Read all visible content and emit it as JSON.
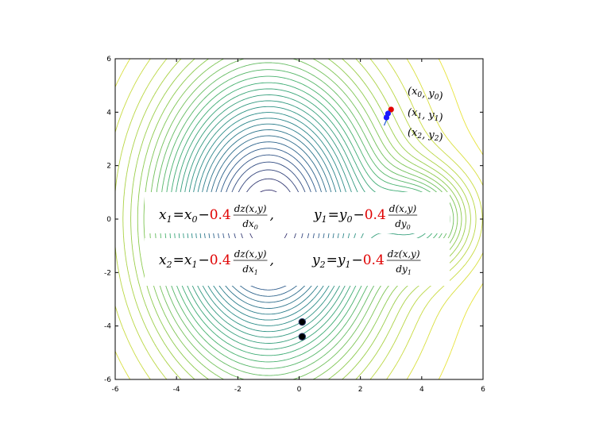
{
  "chart_data": {
    "type": "contour",
    "title": "",
    "xlabel": "",
    "ylabel": "",
    "xlim": [
      -6,
      6
    ],
    "ylim": [
      -6,
      6
    ],
    "xticks": [
      "-6",
      "-4",
      "-2",
      "0",
      "2",
      "4",
      "6"
    ],
    "yticks": [
      "-6",
      "-4",
      "-2",
      "0",
      "2",
      "4",
      "6"
    ],
    "grid": false,
    "colormap": [
      "#3b2f6b",
      "#2f5a8c",
      "#2a8a8a",
      "#3fae72",
      "#8fcb4c",
      "#e8e33a"
    ],
    "minima": [
      {
        "x": -1,
        "y": 0
      },
      {
        "x": 4,
        "y": 0
      }
    ],
    "points": [
      {
        "label": "(x0,y0)",
        "x": 3.0,
        "y": 4.1,
        "color": "#e00000"
      },
      {
        "label": "(x1,y1)",
        "x": 2.9,
        "y": 3.95,
        "color": "#1a1aff"
      },
      {
        "label": "(x2,y2)",
        "x": 2.85,
        "y": 3.8,
        "color": "#1a1aff"
      },
      {
        "label": "",
        "x": 0.1,
        "y": -3.85,
        "color": "#000000"
      },
      {
        "label": "",
        "x": 0.1,
        "y": -4.4,
        "color": "#000000"
      }
    ],
    "annotations": [
      {
        "base": "x",
        "sub": "0",
        "base2": "y",
        "sub2": "0"
      },
      {
        "base": "x",
        "sub": "1",
        "base2": "y",
        "sub2": "1"
      },
      {
        "base": "x",
        "sub": "2",
        "base2": "y",
        "sub2": "2"
      }
    ],
    "learning_rate": "0.4",
    "equations": [
      {
        "lhs": "x",
        "lhs_sub": "1",
        "rhs": "x",
        "rhs_sub": "0",
        "num": "dz(x,y)",
        "den": "dx",
        "den_sub": "0"
      },
      {
        "lhs": "y",
        "lhs_sub": "1",
        "rhs": "y",
        "rhs_sub": "0",
        "num": "d(x,y)",
        "den": "dy",
        "den_sub": "0"
      },
      {
        "lhs": "x",
        "lhs_sub": "2",
        "rhs": "x",
        "rhs_sub": "1",
        "num": "dz(x,y)",
        "den": "dx",
        "den_sub": "1"
      },
      {
        "lhs": "y",
        "lhs_sub": "2",
        "rhs": "y",
        "rhs_sub": "1",
        "num": "dz(x,y)",
        "den": "dy",
        "den_sub": "1"
      }
    ]
  }
}
